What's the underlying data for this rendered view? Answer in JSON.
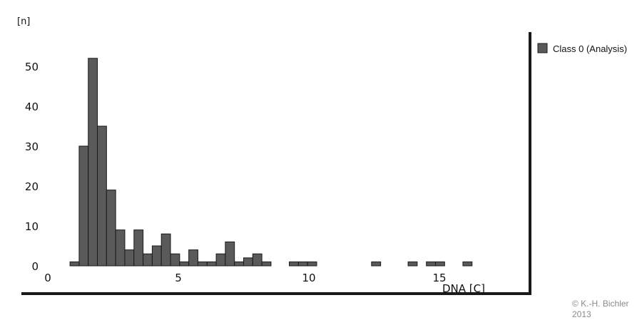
{
  "chart_data": {
    "type": "bar",
    "title": "",
    "xlabel": "DNA [C]",
    "ylabel": "[n]",
    "xlim": [
      0,
      17.5
    ],
    "ylim": [
      0,
      60
    ],
    "xticks": [
      0,
      5,
      10,
      15
    ],
    "yticks": [
      0,
      10,
      20,
      30,
      40,
      50
    ],
    "grid": false,
    "legend": {
      "position": "right",
      "entries": [
        "Class 0 (Analysis)"
      ]
    },
    "bin_width": 0.35,
    "series": [
      {
        "name": "Class 0 (Analysis)",
        "color": "#5a5a5a",
        "x": [
          0.85,
          1.2,
          1.55,
          1.9,
          2.25,
          2.6,
          2.95,
          3.3,
          3.65,
          4.0,
          4.35,
          4.7,
          5.05,
          5.4,
          5.75,
          6.1,
          6.45,
          6.8,
          7.15,
          7.5,
          7.85,
          8.2,
          9.25,
          9.6,
          9.95,
          12.4,
          13.8,
          14.5,
          14.85,
          15.9
        ],
        "values": [
          1,
          30,
          52,
          35,
          19,
          9,
          4,
          9,
          3,
          5,
          8,
          3,
          1,
          4,
          1,
          1,
          3,
          6,
          1,
          2,
          3,
          1,
          1,
          1,
          1,
          1,
          1,
          1,
          1,
          1
        ]
      }
    ]
  },
  "copyright": {
    "line1": "© K.-H. Bichler",
    "line2": "2013"
  }
}
